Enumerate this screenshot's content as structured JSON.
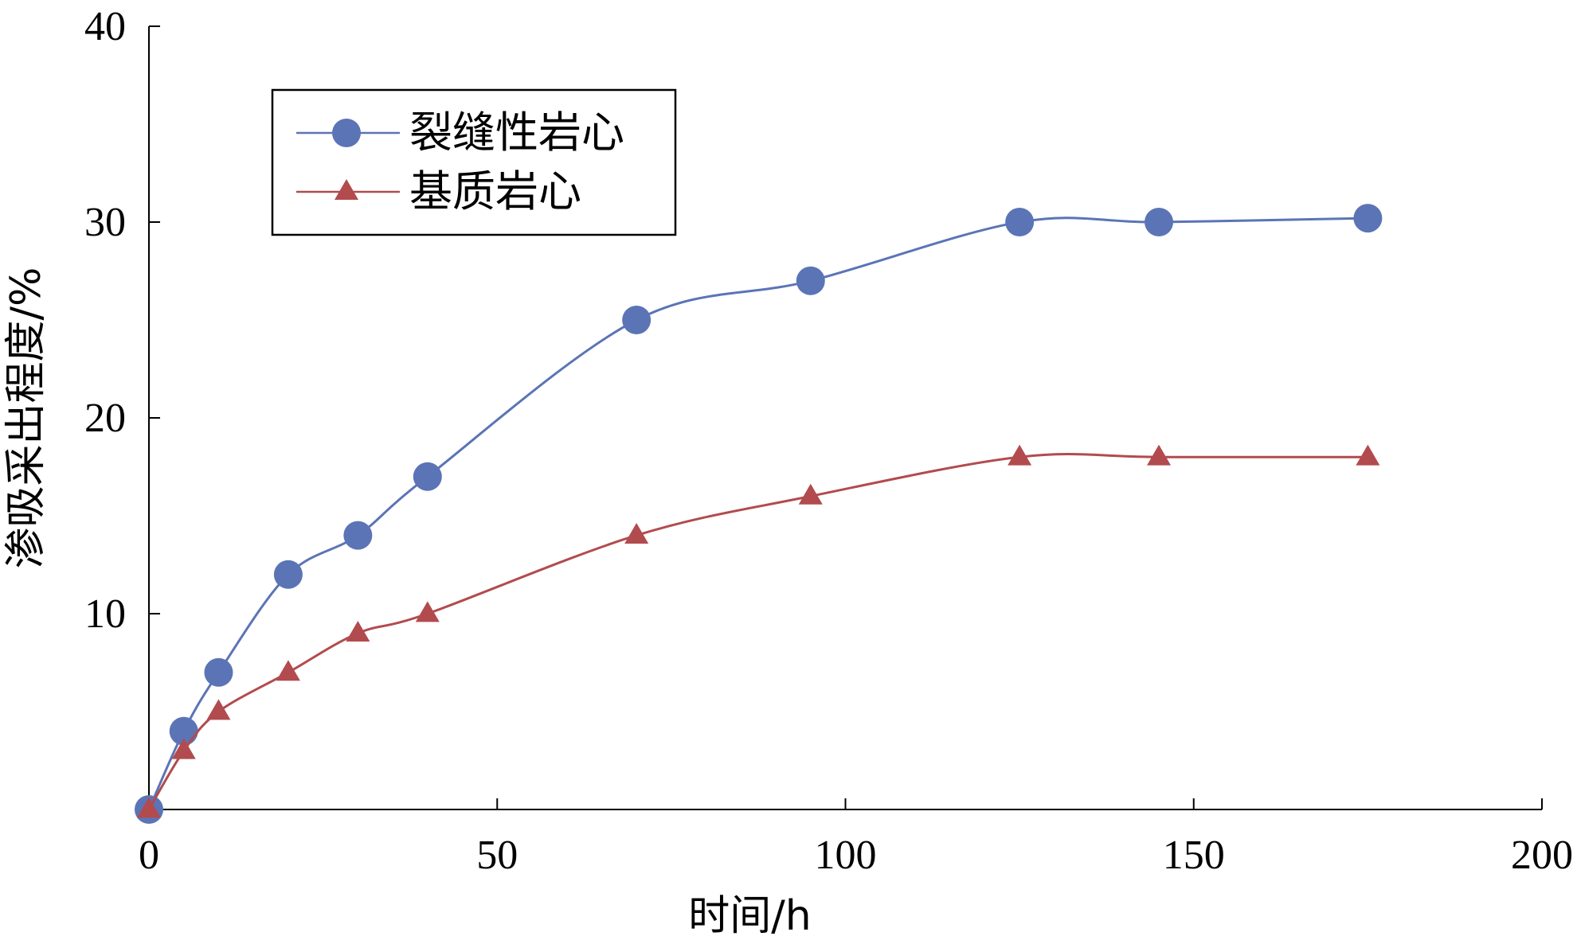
{
  "chart_data": {
    "type": "line",
    "title": "",
    "xlabel": "时间/h",
    "ylabel": "渗吸采出程度/%",
    "xlim": [
      0,
      200
    ],
    "ylim": [
      0,
      40
    ],
    "xticks": [
      "0",
      "50",
      "100",
      "150",
      "200"
    ],
    "yticks": [
      "10",
      "20",
      "30",
      "40"
    ],
    "grid": false,
    "legend_position": "top-left",
    "series": [
      {
        "name": "裂缝性岩心",
        "color": "#5B74B6",
        "marker": "circle",
        "x": [
          0,
          5,
          10,
          20,
          30,
          40,
          70,
          95,
          125,
          145,
          175
        ],
        "y": [
          0,
          4,
          7,
          12,
          14,
          17,
          25,
          27,
          30,
          30,
          30.2
        ]
      },
      {
        "name": "基质岩心",
        "color": "#B24B4E",
        "marker": "triangle",
        "x": [
          0,
          5,
          10,
          20,
          30,
          40,
          70,
          95,
          125,
          145,
          175
        ],
        "y": [
          0,
          3,
          5,
          7,
          9,
          10,
          14,
          16,
          18,
          18,
          18
        ]
      }
    ]
  }
}
